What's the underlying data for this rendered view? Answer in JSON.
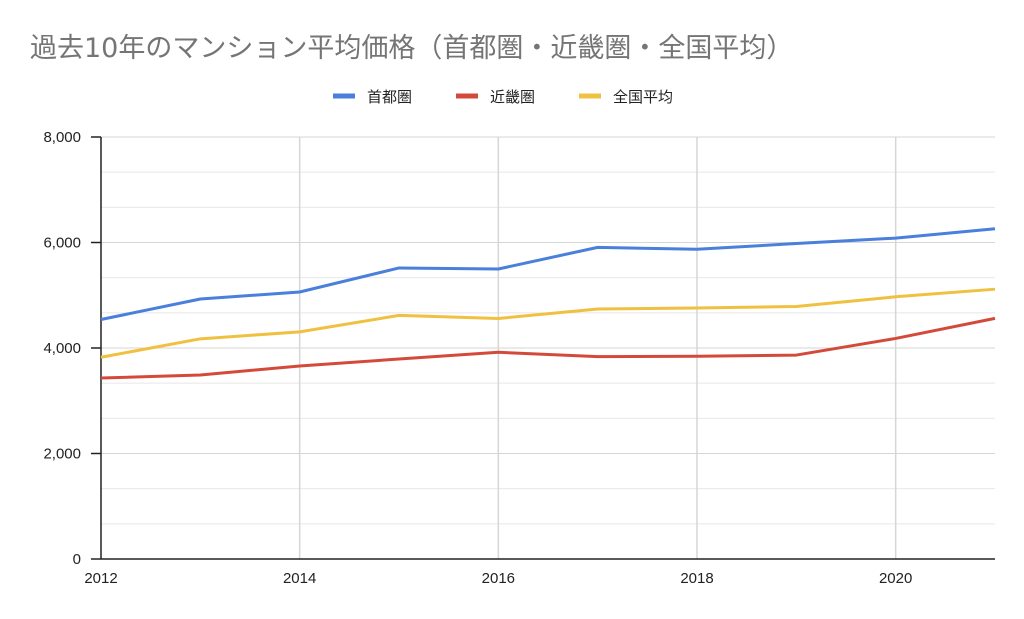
{
  "chart_data": {
    "type": "line",
    "title": "過去10年のマンション平均価格（首都圏・近畿圏・全国平均）",
    "xlabel": "",
    "ylabel": "",
    "x": [
      2012,
      2013,
      2014,
      2015,
      2016,
      2017,
      2018,
      2019,
      2020,
      2021
    ],
    "xlim": [
      2012,
      2021
    ],
    "ylim": [
      0,
      8000
    ],
    "x_ticks": [
      "2012",
      "2014",
      "2016",
      "2018",
      "2020"
    ],
    "y_ticks": [
      "0",
      "2,000",
      "4,000",
      "6,000",
      "8,000"
    ],
    "grid": true,
    "legend_position": "top-center",
    "series": [
      {
        "name": "首都圏",
        "color": "#4a7fdc",
        "values": [
          4540,
          4929,
          5062,
          5517,
          5498,
          5908,
          5871,
          5980,
          6083,
          6260
        ]
      },
      {
        "name": "近畿圏",
        "color": "#d44a3a",
        "values": [
          3431,
          3488,
          3659,
          3791,
          3919,
          3836,
          3844,
          3866,
          4181,
          4562
        ]
      },
      {
        "name": "全国平均",
        "color": "#f0c040",
        "values": [
          3824,
          4174,
          4306,
          4618,
          4560,
          4739,
          4759,
          4787,
          4971,
          5115
        ]
      }
    ]
  }
}
